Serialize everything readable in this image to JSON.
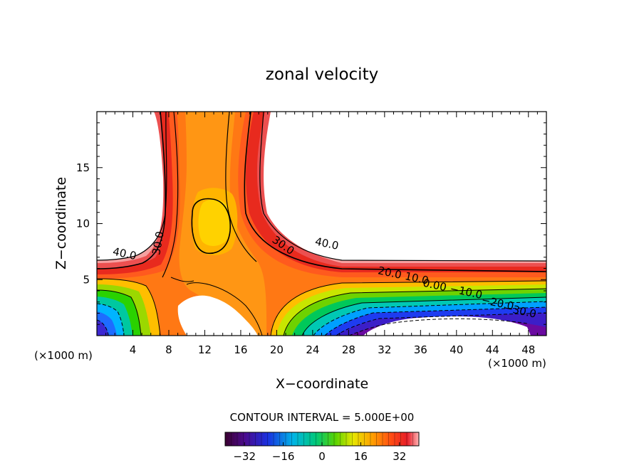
{
  "chart_data": {
    "type": "contour",
    "title": "zonal velocity",
    "xlabel": "X−coordinate",
    "ylabel": "Z−coordinate",
    "x_unit_label": "(×1000 m)",
    "xlim": [
      0,
      50
    ],
    "ylim": [
      0,
      20
    ],
    "x_ticks": [
      4,
      8,
      12,
      16,
      20,
      24,
      28,
      32,
      36,
      40,
      44,
      48
    ],
    "y_ticks": [
      5,
      10,
      15
    ],
    "contour_interval_text": "CONTOUR INTERVAL = 5.000E+00",
    "contour_interval": 5.0,
    "contour_labels": [
      {
        "text": "40.0",
        "x": 3.0,
        "y": 7.0
      },
      {
        "text": "30.0",
        "x": 7.2,
        "y": 8.2
      },
      {
        "text": "30.0",
        "x": 20.5,
        "y": 7.8
      },
      {
        "text": "40.0",
        "x": 25.5,
        "y": 7.9
      },
      {
        "text": "20.0",
        "x": 32.5,
        "y": 5.3
      },
      {
        "text": "10.0",
        "x": 35.5,
        "y": 4.8
      },
      {
        "text": "0.00",
        "x": 37.5,
        "y": 4.2
      },
      {
        "text": "−10.0",
        "x": 41.0,
        "y": 3.6
      },
      {
        "text": "−20.0",
        "x": 44.5,
        "y": 2.6
      },
      {
        "text": "−30.0",
        "x": 47.0,
        "y": 1.9
      }
    ],
    "colorbar": {
      "range": [
        -40,
        40
      ],
      "ticks": [
        -32,
        -16,
        0,
        16,
        32
      ],
      "tick_labels": [
        "−32",
        "−16",
        "0",
        "16",
        "32"
      ]
    }
  }
}
